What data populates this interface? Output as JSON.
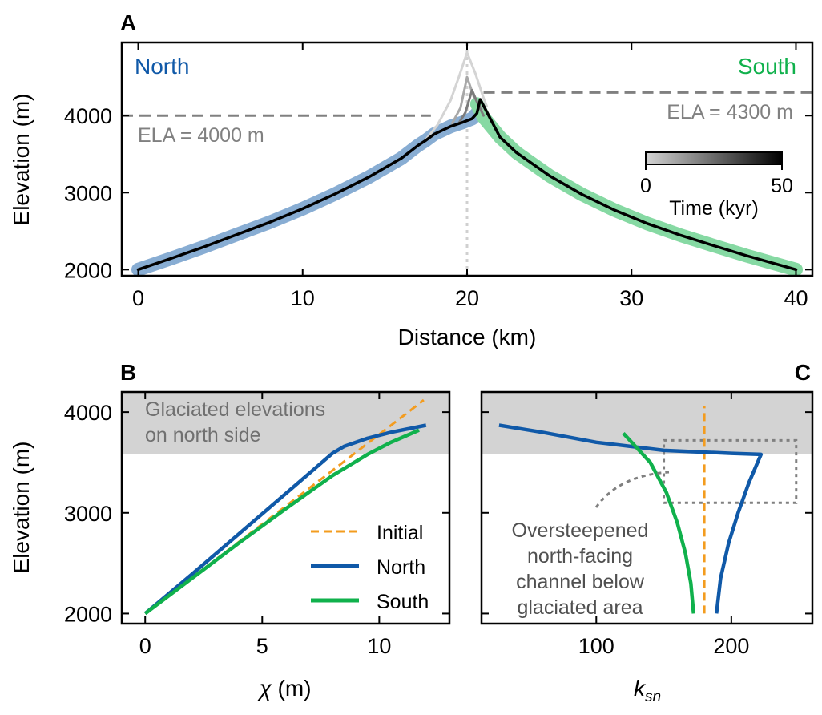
{
  "chart_data": [
    {
      "panel": "A",
      "type": "line",
      "xlabel": "Distance (km)",
      "ylabel": "Elevation (m)",
      "xlim": [
        -1,
        41
      ],
      "ylim": [
        1920,
        4950
      ],
      "xticks": [
        "0",
        "10",
        "20",
        "30",
        "40"
      ],
      "yticks": [
        "2000",
        "3000",
        "4000"
      ],
      "labels": {
        "north": "North",
        "south": "South",
        "ela_north": "ELA = 4000 m",
        "ela_south": "ELA = 4300 m"
      },
      "colorbar": {
        "label": "Time (kyr)",
        "min": "0",
        "max": "50",
        "colors": [
          "#d4d4d4",
          "#000000"
        ]
      },
      "colors": {
        "north_thick": "#88add3",
        "south_thick": "#86d9a3",
        "north_text": "#1059a8",
        "south_text": "#10b14c",
        "ela": "#808080",
        "divide": "#d0d0d0"
      },
      "ela_north_y": 4000,
      "ela_south_y": 4300,
      "divide_x": 20,
      "series": [
        {
          "role": "north-profile",
          "color": "#88add3",
          "width": 17,
          "x": [
            0,
            2,
            4,
            6,
            8,
            10,
            12,
            14,
            16,
            17,
            17.5,
            18,
            19,
            19.7,
            20.3,
            20.6
          ],
          "y": [
            2000,
            2145,
            2295,
            2455,
            2615,
            2790,
            2985,
            3200,
            3445,
            3610,
            3680,
            3760,
            3860,
            3910,
            3960,
            4030
          ]
        },
        {
          "role": "south-profile",
          "color": "#86d9a3",
          "width": 17,
          "x": [
            20.6,
            21,
            22,
            23,
            25,
            27,
            29,
            31,
            33,
            35,
            37,
            39,
            40
          ],
          "y": [
            4150,
            3980,
            3720,
            3520,
            3220,
            2975,
            2770,
            2595,
            2445,
            2310,
            2180,
            2060,
            2000
          ]
        },
        {
          "role": "time-0",
          "color": "#d4d4d4",
          "width": 3,
          "x": [
            17.5,
            18.2,
            19,
            19.5,
            20,
            20.5,
            21,
            21.2
          ],
          "y": [
            3690,
            3880,
            4200,
            4500,
            4820,
            4550,
            4230,
            4120
          ]
        },
        {
          "role": "time-1",
          "color": "#a8a8a8",
          "width": 3,
          "x": [
            19.1,
            19.6,
            20,
            20.4,
            20.9
          ],
          "y": [
            3900,
            4100,
            4500,
            4250,
            4080
          ]
        },
        {
          "role": "time-2",
          "color": "#7c7c7c",
          "width": 3,
          "x": [
            19.5,
            19.9,
            20.3,
            20.6,
            21
          ],
          "y": [
            3900,
            4040,
            4330,
            4180,
            4000
          ]
        },
        {
          "role": "final",
          "color": "#000000",
          "width": 3.5,
          "x": [
            0,
            2,
            4,
            6,
            8,
            10,
            12,
            14,
            16,
            17,
            17.5,
            18,
            19,
            19.7,
            20.3,
            20.6,
            20.8,
            21,
            22,
            23,
            25,
            27,
            29,
            31,
            33,
            35,
            37,
            39,
            40
          ],
          "y": [
            2000,
            2145,
            2295,
            2455,
            2615,
            2790,
            2985,
            3200,
            3445,
            3610,
            3680,
            3760,
            3860,
            3910,
            3960,
            4030,
            4210,
            4130,
            3720,
            3520,
            3220,
            2975,
            2770,
            2595,
            2445,
            2310,
            2180,
            2060,
            2000
          ]
        }
      ]
    },
    {
      "panel": "B",
      "type": "line",
      "xlabel_symbol": "χ",
      "xlabel_unit": " (m)",
      "ylabel": "Elevation (m)",
      "xlim": [
        -1,
        13
      ],
      "ylim": [
        1900,
        4200
      ],
      "xticks": [
        "0",
        "5",
        "10"
      ],
      "yticks": [
        "2000",
        "3000",
        "4000"
      ],
      "shade_from": 3580,
      "shade_label": [
        "Glaciated elevations",
        "on north side"
      ],
      "legend": {
        "position": "lower-right"
      },
      "series": [
        {
          "name": "Initial",
          "color": "#f39c1f",
          "dash": true,
          "x": [
            0,
            4,
            8,
            11.9
          ],
          "y": [
            2000,
            2710,
            3420,
            4120
          ]
        },
        {
          "name": "North",
          "color": "#1059a8",
          "x": [
            0,
            2,
            4,
            6,
            8,
            8.5,
            9.5,
            10.5,
            12
          ],
          "y": [
            2000,
            2390,
            2790,
            3190,
            3590,
            3660,
            3740,
            3800,
            3870
          ]
        },
        {
          "name": "South",
          "color": "#10b14c",
          "x": [
            0,
            2,
            4,
            6,
            8,
            9.5,
            10.5,
            11.7
          ],
          "y": [
            2000,
            2350,
            2700,
            3040,
            3370,
            3580,
            3700,
            3820
          ]
        }
      ]
    },
    {
      "panel": "C",
      "type": "line",
      "xlabel_symbol": "k",
      "xlabel_sub": "sn",
      "xlim": [
        15,
        260
      ],
      "ylim": [
        1900,
        4200
      ],
      "xticks": [
        "100",
        "200"
      ],
      "shade_from": 3580,
      "annotation": [
        "Oversteepened",
        "north-facing",
        "channel below",
        "glaciated area"
      ],
      "box": {
        "x": [
          150,
          248
        ],
        "y": [
          3100,
          3720
        ]
      },
      "series": [
        {
          "role": "initial",
          "color": "#f39c1f",
          "dash": true,
          "x": [
            180,
            180
          ],
          "y": [
            2000,
            4060
          ]
        },
        {
          "role": "north",
          "color": "#1059a8",
          "x": [
            28,
            60,
            100,
            150,
            200,
            222,
            213,
            205,
            198,
            192,
            189
          ],
          "y": [
            3870,
            3800,
            3700,
            3620,
            3590,
            3580,
            3300,
            3000,
            2700,
            2350,
            2000
          ]
        },
        {
          "role": "south",
          "color": "#10b14c",
          "x": [
            120,
            140,
            152,
            160,
            166,
            170,
            172
          ],
          "y": [
            3790,
            3500,
            3200,
            2900,
            2600,
            2300,
            2000
          ]
        }
      ]
    }
  ]
}
